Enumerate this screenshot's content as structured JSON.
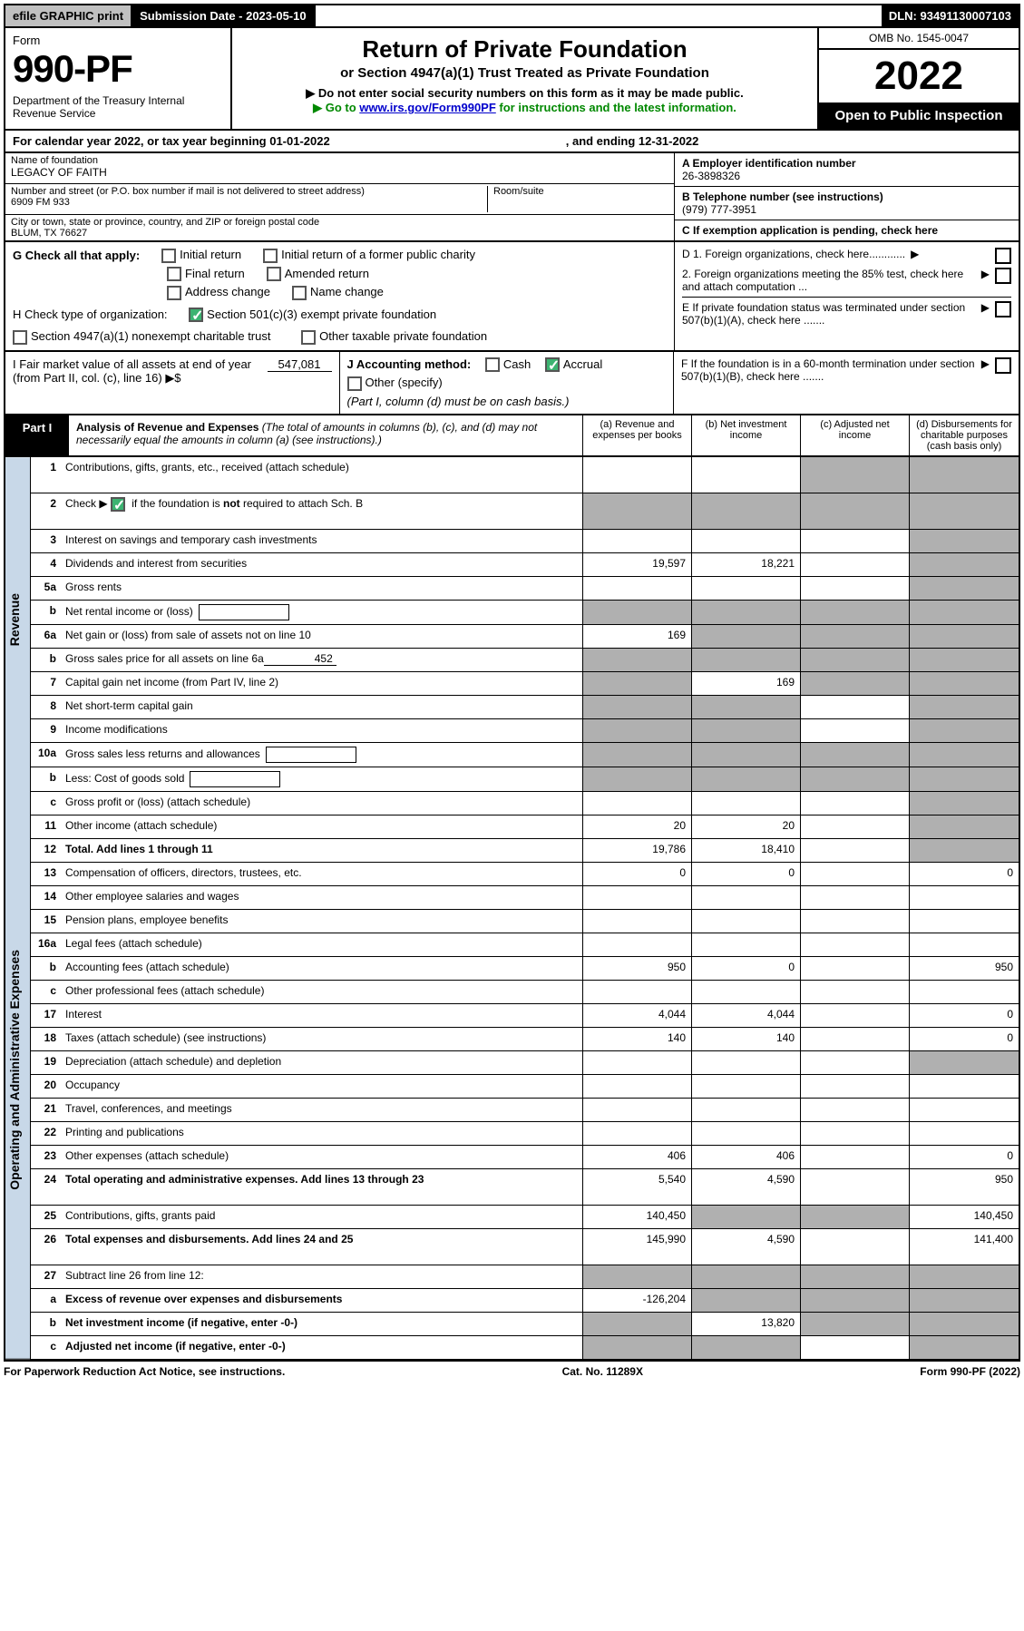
{
  "topbar": {
    "efile": "efile GRAPHIC print",
    "subdate": "Submission Date - 2023-05-10",
    "dln": "DLN: 93491130007103"
  },
  "header": {
    "form_label": "Form",
    "form_no": "990-PF",
    "dept": "Department of the Treasury\nInternal Revenue Service",
    "title": "Return of Private Foundation",
    "sub1": "or Section 4947(a)(1) Trust Treated as Private Foundation",
    "sub2": "▶ Do not enter social security numbers on this form as it may be made public.",
    "sub3_pre": "▶ Go to ",
    "sub3_link": "www.irs.gov/Form990PF",
    "sub3_post": " for instructions and the latest information.",
    "omb": "OMB No. 1545-0047",
    "year": "2022",
    "inspect": "Open to Public Inspection"
  },
  "cal_year": {
    "pre": "For calendar year 2022, or tax year beginning 01-01-2022",
    "end": ", and ending 12-31-2022"
  },
  "info": {
    "name_label": "Name of foundation",
    "name": "LEGACY OF FAITH",
    "addr_label": "Number and street (or P.O. box number if mail is not delivered to street address)",
    "addr": "6909 FM 933",
    "room_label": "Room/suite",
    "city_label": "City or town, state or province, country, and ZIP or foreign postal code",
    "city": "BLUM, TX  76627",
    "a_label": "A Employer identification number",
    "a_val": "26-3898326",
    "b_label": "B Telephone number (see instructions)",
    "b_val": "(979) 777-3951",
    "c_label": "C If exemption application is pending, check here"
  },
  "checks": {
    "g_label": "G Check all that apply:",
    "g_items": [
      "Initial return",
      "Initial return of a former public charity",
      "Final return",
      "Amended return",
      "Address change",
      "Name change"
    ],
    "h_label": "H Check type of organization:",
    "h_501c3": "Section 501(c)(3) exempt private foundation",
    "h_4947": "Section 4947(a)(1) nonexempt charitable trust",
    "h_other": "Other taxable private foundation",
    "d1": "D 1. Foreign organizations, check here............",
    "d2": "2. Foreign organizations meeting the 85% test, check here and attach computation ...",
    "e": "E  If private foundation status was terminated under section 507(b)(1)(A), check here .......",
    "f": "F  If the foundation is in a 60-month termination under section 507(b)(1)(B), check here ......."
  },
  "ij": {
    "i_label": "I Fair market value of all assets at end of year (from Part II, col. (c), line 16) ▶$",
    "i_val": "547,081",
    "j_label": "J Accounting method:",
    "j_cash": "Cash",
    "j_accrual": "Accrual",
    "j_other": "Other (specify)",
    "j_note": "(Part I, column (d) must be on cash basis.)"
  },
  "part1": {
    "label": "Part I",
    "title_bold": "Analysis of Revenue and Expenses",
    "title_rest": " (The total of amounts in columns (b), (c), and (d) may not necessarily equal the amounts in column (a) (see instructions).)",
    "col_a": "(a)  Revenue and expenses per books",
    "col_b": "(b)  Net investment income",
    "col_c": "(c)  Adjusted net income",
    "col_d": "(d)  Disbursements for charitable purposes (cash basis only)",
    "side_rev": "Revenue",
    "side_opex": "Operating and Administrative Expenses",
    "rows": {
      "1": {
        "n": "1",
        "d": "Contributions, gifts, grants, etc., received (attach schedule)"
      },
      "2": {
        "n": "2",
        "d": "Check ▶ ☑ if the foundation is not required to attach Sch. B"
      },
      "3": {
        "n": "3",
        "d": "Interest on savings and temporary cash investments"
      },
      "4": {
        "n": "4",
        "d": "Dividends and interest from securities",
        "a": "19,597",
        "b": "18,221"
      },
      "5a": {
        "n": "5a",
        "d": "Gross rents"
      },
      "5b": {
        "n": "b",
        "d": "Net rental income or (loss)"
      },
      "6a": {
        "n": "6a",
        "d": "Net gain or (loss) from sale of assets not on line 10",
        "a": "169"
      },
      "6b": {
        "n": "b",
        "d": "Gross sales price for all assets on line 6a",
        "inline": "452"
      },
      "7": {
        "n": "7",
        "d": "Capital gain net income (from Part IV, line 2)",
        "b": "169"
      },
      "8": {
        "n": "8",
        "d": "Net short-term capital gain"
      },
      "9": {
        "n": "9",
        "d": "Income modifications"
      },
      "10a": {
        "n": "10a",
        "d": "Gross sales less returns and allowances"
      },
      "10b": {
        "n": "b",
        "d": "Less: Cost of goods sold"
      },
      "10c": {
        "n": "c",
        "d": "Gross profit or (loss) (attach schedule)"
      },
      "11": {
        "n": "11",
        "d": "Other income (attach schedule)",
        "a": "20",
        "b": "20"
      },
      "12": {
        "n": "12",
        "d": "Total. Add lines 1 through 11",
        "bold": true,
        "a": "19,786",
        "b": "18,410"
      },
      "13": {
        "n": "13",
        "d": "Compensation of officers, directors, trustees, etc.",
        "a": "0",
        "b": "0",
        "dd": "0"
      },
      "14": {
        "n": "14",
        "d": "Other employee salaries and wages"
      },
      "15": {
        "n": "15",
        "d": "Pension plans, employee benefits"
      },
      "16a": {
        "n": "16a",
        "d": "Legal fees (attach schedule)"
      },
      "16b": {
        "n": "b",
        "d": "Accounting fees (attach schedule)",
        "a": "950",
        "b": "0",
        "dd": "950"
      },
      "16c": {
        "n": "c",
        "d": "Other professional fees (attach schedule)"
      },
      "17": {
        "n": "17",
        "d": "Interest",
        "a": "4,044",
        "b": "4,044",
        "dd": "0"
      },
      "18": {
        "n": "18",
        "d": "Taxes (attach schedule) (see instructions)",
        "a": "140",
        "b": "140",
        "dd": "0"
      },
      "19": {
        "n": "19",
        "d": "Depreciation (attach schedule) and depletion"
      },
      "20": {
        "n": "20",
        "d": "Occupancy"
      },
      "21": {
        "n": "21",
        "d": "Travel, conferences, and meetings"
      },
      "22": {
        "n": "22",
        "d": "Printing and publications"
      },
      "23": {
        "n": "23",
        "d": "Other expenses (attach schedule)",
        "a": "406",
        "b": "406",
        "dd": "0"
      },
      "24": {
        "n": "24",
        "d": "Total operating and administrative expenses. Add lines 13 through 23",
        "bold": true,
        "a": "5,540",
        "b": "4,590",
        "dd": "950"
      },
      "25": {
        "n": "25",
        "d": "Contributions, gifts, grants paid",
        "a": "140,450",
        "dd": "140,450"
      },
      "26": {
        "n": "26",
        "d": "Total expenses and disbursements. Add lines 24 and 25",
        "bold": true,
        "a": "145,990",
        "b": "4,590",
        "dd": "141,400"
      },
      "27": {
        "n": "27",
        "d": "Subtract line 26 from line 12:"
      },
      "27a": {
        "n": "a",
        "d": "Excess of revenue over expenses and disbursements",
        "bold": true,
        "a": "-126,204"
      },
      "27b": {
        "n": "b",
        "d": "Net investment income (if negative, enter -0-)",
        "bold": true,
        "b": "13,820"
      },
      "27c": {
        "n": "c",
        "d": "Adjusted net income (if negative, enter -0-)",
        "bold": true
      }
    }
  },
  "footer": {
    "left": "For Paperwork Reduction Act Notice, see instructions.",
    "center": "Cat. No. 11289X",
    "right": "Form 990-PF (2022)"
  },
  "colors": {
    "black": "#000000",
    "shade": "#b0b0b0",
    "bluebg": "#c8d8e8",
    "green": "#008800",
    "link": "#0000cc"
  }
}
